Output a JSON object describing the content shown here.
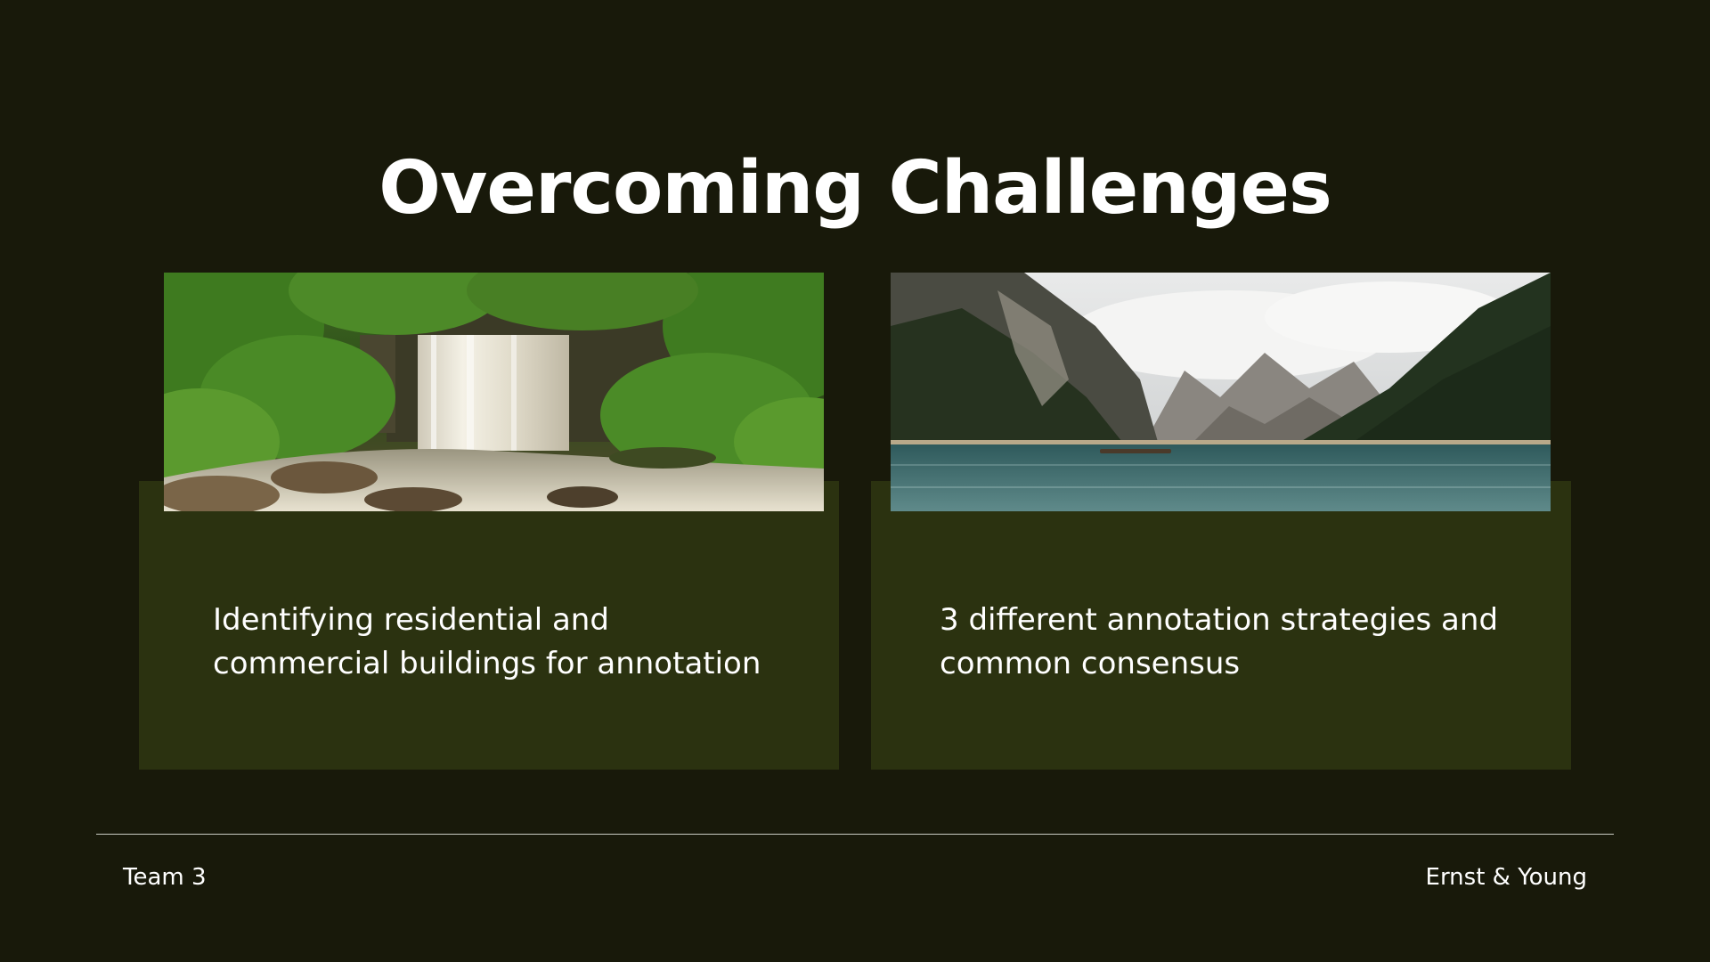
{
  "slide": {
    "title": "Overcoming Challenges"
  },
  "cards": [
    {
      "image_subject": "waterfall",
      "text_lines": [
        "Identifying residential and",
        "commercial buildings for annotation"
      ]
    },
    {
      "image_subject": "mountain-lake",
      "text_lines": [
        "3 different annotation strategies and",
        "common consensus"
      ]
    }
  ],
  "footer": {
    "left": "Team 3",
    "right": "Ernst & Young"
  },
  "colors": {
    "background": "#18190a",
    "card": "#2b3210",
    "text": "#ffffff",
    "divider": "#c9cbc2"
  }
}
